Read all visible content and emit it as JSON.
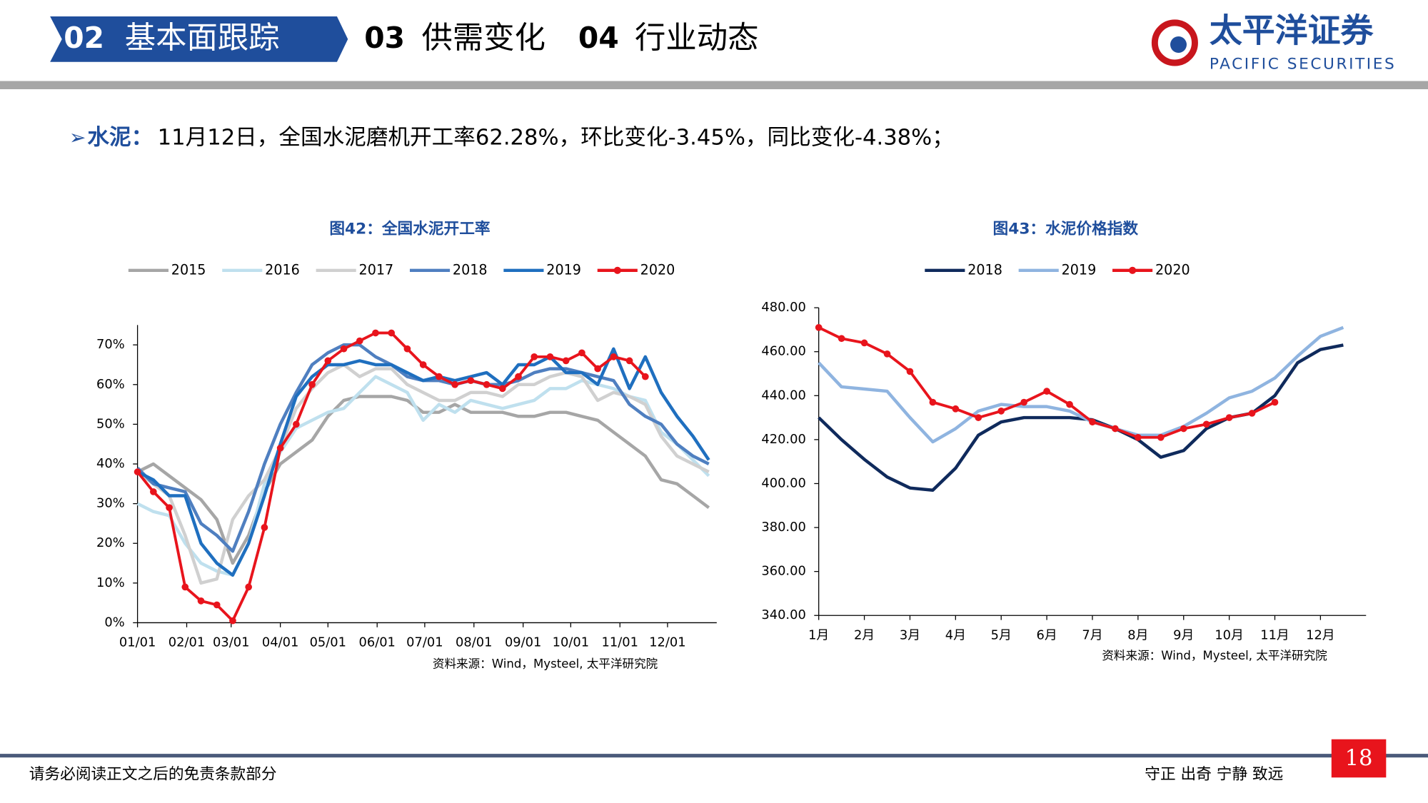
{
  "header": {
    "nav": [
      {
        "num": "02",
        "label": "基本面跟踪"
      },
      {
        "num": "03",
        "label": "供需变化"
      },
      {
        "num": "04",
        "label": "行业动态"
      }
    ],
    "logo": "太平洋证券",
    "logo_en": "PACIFIC SECURITIES"
  },
  "bullet": {
    "label": "水泥：",
    "text": "11月12日，全国水泥磨机开工率62.28%，环比变化-3.45%，同比变化-4.38%；"
  },
  "footer": {
    "disclaimer": "请务必阅读正文之后的免责条款部分",
    "motto": "守正 出奇 宁静 致远",
    "page": "18"
  },
  "chart_data": [
    {
      "type": "line",
      "title": "图42：全国水泥开工率",
      "source": "资料来源：Wind，Mysteel, 太平洋研究院",
      "legend": "top",
      "x": [
        0,
        10,
        20,
        30,
        40,
        50,
        60,
        70,
        80,
        90,
        100,
        110,
        120,
        130,
        140,
        150,
        160,
        170,
        180,
        190,
        200,
        210,
        220,
        230,
        240,
        250,
        260,
        270,
        280,
        290,
        300,
        310,
        320,
        330,
        340,
        350,
        360
      ],
      "xlim": [
        0,
        365
      ],
      "xticks": [
        {
          "value": 0,
          "label": "01/01"
        },
        {
          "value": 31,
          "label": "02/01"
        },
        {
          "value": 59,
          "label": "03/01"
        },
        {
          "value": 90,
          "label": "04/01"
        },
        {
          "value": 120,
          "label": "05/01"
        },
        {
          "value": 151,
          "label": "06/01"
        },
        {
          "value": 181,
          "label": "07/01"
        },
        {
          "value": 212,
          "label": "08/01"
        },
        {
          "value": 243,
          "label": "09/01"
        },
        {
          "value": 273,
          "label": "10/01"
        },
        {
          "value": 304,
          "label": "11/01"
        },
        {
          "value": 334,
          "label": "12/01"
        }
      ],
      "ylim": [
        0,
        75
      ],
      "yticks": [
        {
          "value": 0,
          "label": "0%"
        },
        {
          "value": 10,
          "label": "10%"
        },
        {
          "value": 20,
          "label": "20%"
        },
        {
          "value": 30,
          "label": "30%"
        },
        {
          "value": 40,
          "label": "40%"
        },
        {
          "value": 50,
          "label": "50%"
        },
        {
          "value": 60,
          "label": "60%"
        },
        {
          "value": 70,
          "label": "70%"
        }
      ],
      "series": [
        {
          "name": "2015",
          "color": "#a6a6a6",
          "values": [
            38,
            40,
            37,
            34,
            31,
            26,
            15,
            22,
            33,
            40,
            43,
            46,
            52,
            56,
            57,
            57,
            57,
            56,
            53,
            53,
            55,
            53,
            53,
            53,
            52,
            52,
            53,
            53,
            52,
            51,
            48,
            45,
            42,
            36,
            35,
            32,
            29
          ]
        },
        {
          "name": "2016",
          "color": "#bfe0ee",
          "values": [
            30,
            28,
            27,
            20,
            15,
            13,
            12,
            20,
            35,
            43,
            49,
            51,
            53,
            54,
            58,
            62,
            60,
            58,
            51,
            55,
            53,
            56,
            55,
            54,
            55,
            56,
            59,
            59,
            61,
            60,
            59,
            57,
            56,
            48,
            45,
            41,
            37
          ]
        },
        {
          "name": "2017",
          "color": "#d0d0d0",
          "values": [
            38,
            35,
            32,
            22,
            10,
            11,
            26,
            32,
            36,
            44,
            54,
            59,
            63,
            65,
            62,
            64,
            64,
            60,
            58,
            56,
            56,
            58,
            58,
            57,
            60,
            60,
            62,
            63,
            62,
            56,
            58,
            57,
            55,
            47,
            42,
            40,
            38
          ]
        },
        {
          "name": "2018",
          "color": "#4f7fc0",
          "values": [
            39,
            35,
            34,
            33,
            25,
            22,
            18,
            28,
            40,
            50,
            58,
            65,
            68,
            70,
            70,
            67,
            65,
            62,
            61,
            61,
            60,
            61,
            60,
            60,
            61,
            63,
            64,
            64,
            63,
            62,
            61,
            55,
            52,
            50,
            45,
            42,
            40
          ]
        },
        {
          "name": "2019",
          "color": "#1f6fbf",
          "values": [
            38,
            36,
            32,
            32,
            20,
            15,
            12,
            20,
            32,
            45,
            57,
            62,
            65,
            65,
            66,
            65,
            65,
            63,
            61,
            62,
            61,
            62,
            63,
            60,
            65,
            65,
            67,
            63,
            63,
            60,
            69,
            59,
            67,
            58,
            52,
            47,
            41
          ]
        },
        {
          "name": "2020",
          "color": "#e8141c",
          "markers": true,
          "values": [
            38,
            33,
            29,
            9,
            5.5,
            4.5,
            0.5,
            9,
            24,
            44,
            50,
            60,
            66,
            69,
            71,
            73,
            73,
            69,
            65,
            62,
            60,
            61,
            60,
            59,
            62,
            67,
            67,
            66,
            68,
            64,
            67,
            66,
            62,
            null,
            null,
            null,
            null
          ]
        }
      ]
    },
    {
      "type": "line",
      "title": "图43：水泥价格指数",
      "source": "资料来源：Wind，Mysteel, 太平洋研究院",
      "legend": "top",
      "x": [
        1,
        1.5,
        2,
        2.5,
        3,
        3.5,
        4,
        4.5,
        5,
        5.5,
        6,
        6.5,
        7,
        7.5,
        8,
        8.5,
        9,
        9.5,
        10,
        10.5,
        11,
        11.5,
        12,
        12.5
      ],
      "xlim": [
        1,
        13
      ],
      "xticks": [
        {
          "value": 1,
          "label": "1月"
        },
        {
          "value": 2,
          "label": "2月"
        },
        {
          "value": 3,
          "label": "3月"
        },
        {
          "value": 4,
          "label": "4月"
        },
        {
          "value": 5,
          "label": "5月"
        },
        {
          "value": 6,
          "label": "6月"
        },
        {
          "value": 7,
          "label": "7月"
        },
        {
          "value": 8,
          "label": "8月"
        },
        {
          "value": 9,
          "label": "9月"
        },
        {
          "value": 10,
          "label": "10月"
        },
        {
          "value": 11,
          "label": "11月"
        },
        {
          "value": 12,
          "label": "12月"
        }
      ],
      "ylim": [
        340,
        480
      ],
      "yticks": [
        {
          "value": 340,
          "label": "340.00"
        },
        {
          "value": 360,
          "label": "360.00"
        },
        {
          "value": 380,
          "label": "380.00"
        },
        {
          "value": 400,
          "label": "400.00"
        },
        {
          "value": 420,
          "label": "420.00"
        },
        {
          "value": 440,
          "label": "440.00"
        },
        {
          "value": 460,
          "label": "460.00"
        },
        {
          "value": 480,
          "label": "480.00"
        }
      ],
      "series": [
        {
          "name": "2018",
          "color": "#0f2a5c",
          "values": [
            430,
            420,
            411,
            403,
            398,
            397,
            407,
            422,
            428,
            430,
            430,
            430,
            429,
            425,
            420,
            412,
            415,
            425,
            430,
            432,
            440,
            455,
            461,
            463
          ]
        },
        {
          "name": "2019",
          "color": "#8fb4e0",
          "values": [
            455,
            444,
            443,
            442,
            430,
            419,
            425,
            433,
            436,
            435,
            435,
            433,
            428,
            425,
            422,
            422,
            426,
            432,
            439,
            442,
            448,
            458,
            467,
            471
          ]
        },
        {
          "name": "2020",
          "color": "#e8141c",
          "markers": true,
          "values": [
            471,
            466,
            464,
            459,
            451,
            437,
            434,
            430,
            433,
            437,
            442,
            436,
            428,
            425,
            421,
            421,
            425,
            427,
            430,
            432,
            437,
            null,
            null,
            null
          ]
        }
      ]
    }
  ]
}
